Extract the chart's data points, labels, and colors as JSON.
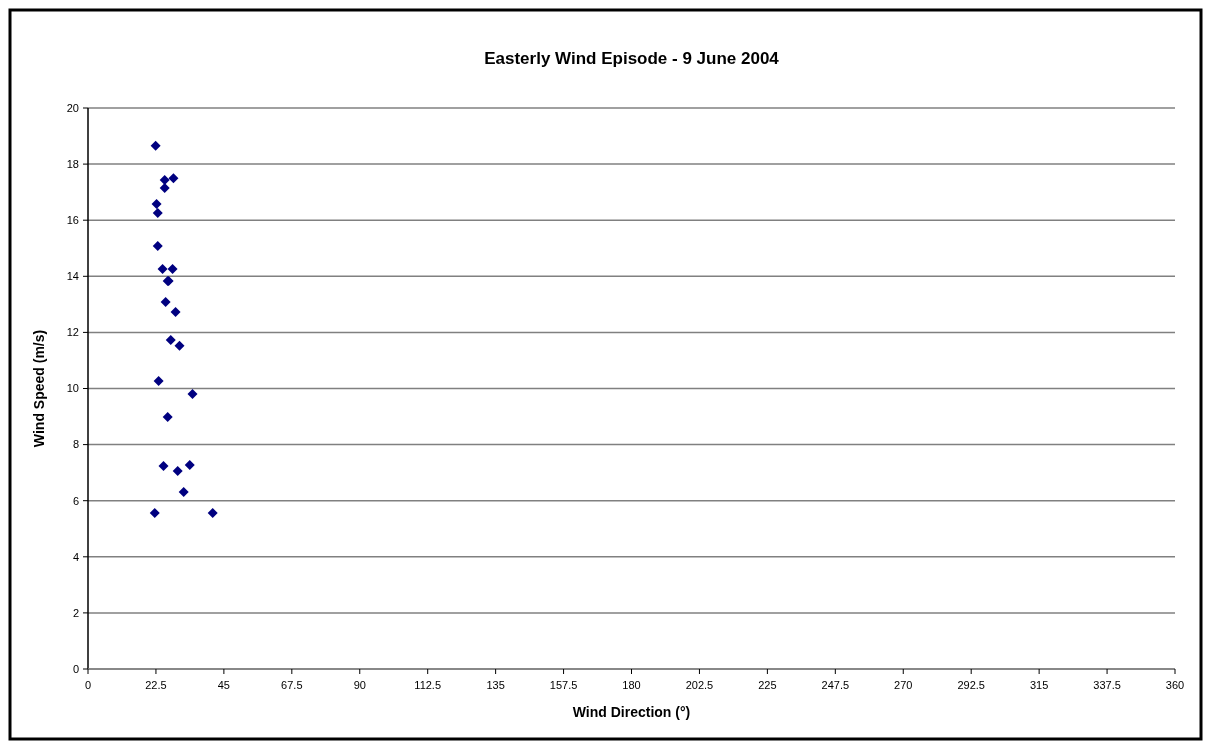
{
  "chart_data": {
    "type": "scatter",
    "title": "Easterly Wind Episode - 9 June 2004",
    "xlabel": "Wind Direction (°)",
    "ylabel": "Wind Speed (m/s)",
    "x": [
      22.4,
      25.4,
      28.3,
      25.4,
      22.7,
      23.1,
      23.1,
      24.7,
      28.0,
      26.4,
      26.7,
      25.7,
      29.0,
      27.4,
      30.3,
      23.4,
      34.6,
      26.4,
      25.0,
      29.7,
      33.7,
      31.7,
      22.1,
      41.3
    ],
    "values": [
      18.65,
      17.43,
      17.5,
      17.15,
      16.58,
      16.26,
      15.08,
      14.26,
      14.26,
      13.83,
      13.83,
      13.08,
      12.73,
      11.73,
      11.52,
      10.27,
      9.8,
      8.98,
      7.24,
      7.06,
      7.27,
      6.31,
      5.56,
      5.56
    ],
    "color": "#000080",
    "marker": "diamond",
    "grid": "y",
    "xlim": [
      0,
      360
    ],
    "xticks": [
      0,
      22.5,
      45,
      67.5,
      90,
      112.5,
      135,
      157.5,
      180,
      202.5,
      225,
      247.5,
      270,
      292.5,
      315,
      337.5,
      360
    ],
    "ylim": [
      0,
      20
    ],
    "yticks": [
      0,
      2,
      4,
      6,
      8,
      10,
      12,
      14,
      16,
      18,
      20
    ]
  }
}
